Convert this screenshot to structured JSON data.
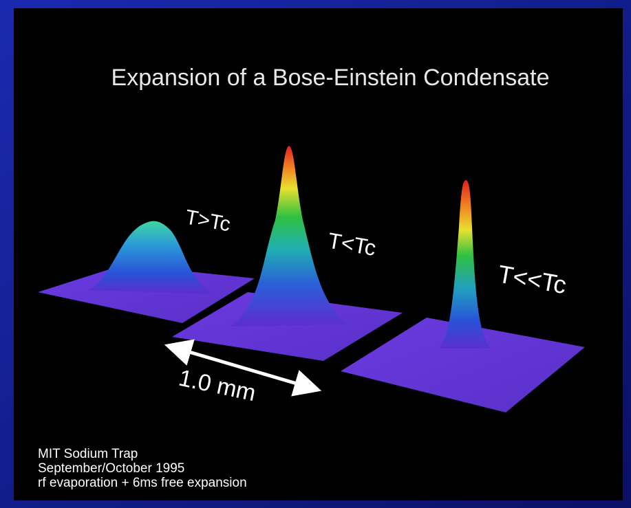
{
  "title": "Expansion of a Bose-Einstein Condensate",
  "panels": [
    {
      "label": "T>Tc"
    },
    {
      "label": "T<Tc"
    },
    {
      "label": "T<<Tc"
    }
  ],
  "scale_label": "1.0 mm",
  "footer": [
    "MIT Sodium Trap",
    "September/October 1995",
    "rf evaporation + 6ms free expansion"
  ]
}
